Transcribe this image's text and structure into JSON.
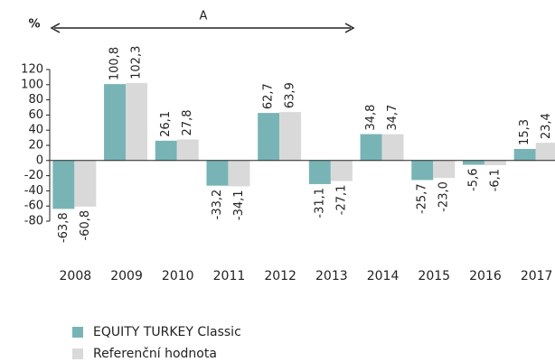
{
  "chart_data": {
    "type": "bar",
    "y_label": "%",
    "annotation": "A",
    "categories": [
      "2008",
      "2009",
      "2010",
      "2011",
      "2012",
      "2013",
      "2014",
      "2015",
      "2016",
      "2017"
    ],
    "series": [
      {
        "name": "EQUITY TURKEY Classic",
        "color": "#78b4b6",
        "values": [
          -63.8,
          100.8,
          26.1,
          -33.2,
          62.7,
          -31.1,
          34.8,
          -25.7,
          -5.6,
          15.3
        ],
        "value_labels": [
          "-63,8",
          "100,8",
          "26,1",
          "-33,2",
          "62,7",
          "-31,1",
          "34,8",
          "-25,7",
          "-5,6",
          "15,3"
        ]
      },
      {
        "name": "Referenční hodnota",
        "color": "#d9d9d9",
        "values": [
          -60.8,
          102.3,
          27.8,
          -34.1,
          63.9,
          -27.1,
          34.7,
          -23.0,
          -6.1,
          23.4
        ],
        "value_labels": [
          "-60,8",
          "102,3",
          "27,8",
          "-34,1",
          "63,9",
          "-27,1",
          "34,7",
          "-23,0",
          "-6,1",
          "23,4"
        ]
      }
    ],
    "ylim": [
      -80,
      120
    ],
    "yticks": [
      120,
      100,
      80,
      60,
      40,
      20,
      0,
      -20,
      -40,
      -60,
      -80
    ],
    "legend": "bottom-left"
  }
}
